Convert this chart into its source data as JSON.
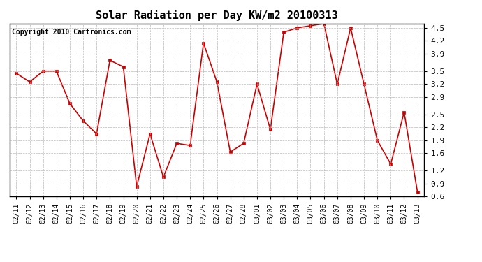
{
  "title": "Solar Radiation per Day KW/m2 20100313",
  "copyright_text": "Copyright 2010 Cartronics.com",
  "dates": [
    "02/11",
    "02/12",
    "02/13",
    "02/14",
    "02/15",
    "02/16",
    "02/17",
    "02/18",
    "02/19",
    "02/20",
    "02/21",
    "02/22",
    "02/23",
    "02/24",
    "02/25",
    "02/26",
    "02/27",
    "02/28",
    "03/01",
    "03/02",
    "03/03",
    "03/04",
    "03/05",
    "03/06",
    "03/07",
    "03/08",
    "03/09",
    "03/10",
    "03/11",
    "03/12",
    "03/13"
  ],
  "values": [
    3.45,
    3.25,
    3.5,
    3.5,
    2.75,
    2.35,
    2.05,
    3.75,
    3.6,
    0.83,
    2.05,
    1.05,
    1.83,
    1.78,
    4.15,
    3.25,
    1.63,
    1.83,
    3.2,
    2.15,
    4.4,
    4.5,
    4.55,
    4.6,
    3.2,
    4.5,
    3.2,
    1.9,
    1.35,
    2.55,
    0.7
  ],
  "line_color": "#cc0000",
  "marker_color": "#cc0000",
  "background_color": "#ffffff",
  "plot_bg_color": "#ffffff",
  "grid_color": "#aaaaaa",
  "ylim": [
    0.6,
    4.6
  ],
  "yticks": [
    0.6,
    0.9,
    1.2,
    1.6,
    1.9,
    2.2,
    2.5,
    2.9,
    3.2,
    3.5,
    3.9,
    4.2,
    4.5
  ],
  "title_fontsize": 11,
  "copyright_fontsize": 7,
  "tick_fontsize": 7,
  "ytick_fontsize": 8
}
